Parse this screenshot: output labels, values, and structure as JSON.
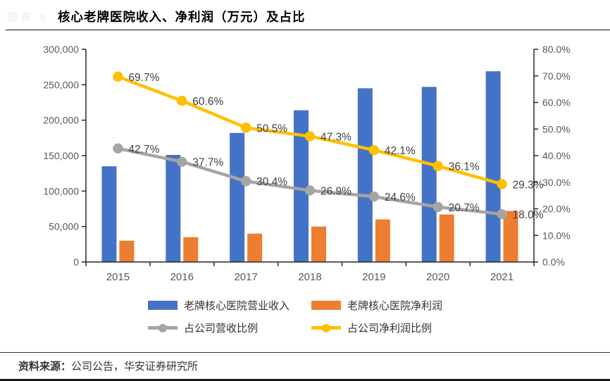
{
  "header": {
    "watermark": "图表 8",
    "title": "核心老牌医院收入、净利润（万元）及占比"
  },
  "chart_data": {
    "type": "bar",
    "subtype": "combo-bar-line",
    "title": "核心老牌医院收入、净利润（万元）及占比",
    "categories": [
      "2015",
      "2016",
      "2017",
      "2018",
      "2019",
      "2020",
      "2021"
    ],
    "series": [
      {
        "name": "老牌核心医院营业收入",
        "type": "bar",
        "axis": "left",
        "color": "#4472C4",
        "values": [
          135000,
          151000,
          182000,
          214000,
          245000,
          247000,
          269000
        ]
      },
      {
        "name": "老牌核心医院净利润",
        "type": "bar",
        "axis": "left",
        "color": "#ED7D31",
        "values": [
          30000,
          35000,
          40000,
          50000,
          60000,
          67000,
          72000
        ]
      },
      {
        "name": "占公司营收比例",
        "type": "line",
        "axis": "right",
        "color": "#A5A5A5",
        "values": [
          42.7,
          37.7,
          30.4,
          26.9,
          24.6,
          20.7,
          18.0
        ],
        "labels": [
          "42.7%",
          "37.7%",
          "30.4%",
          "26.9%",
          "24.6%",
          "20.7%",
          "18.0%"
        ]
      },
      {
        "name": "占公司净利润比例",
        "type": "line",
        "axis": "right",
        "color": "#FFC000",
        "values": [
          69.7,
          60.6,
          50.5,
          47.3,
          42.1,
          36.1,
          29.3
        ],
        "labels": [
          "69.7%",
          "60.6%",
          "50.5%",
          "47.3%",
          "42.1%",
          "36.1%",
          "29.3%"
        ]
      }
    ],
    "left_axis": {
      "min": 0,
      "max": 300000,
      "step": 50000,
      "tick_labels": [
        "0",
        "50,000",
        "100,000",
        "150,000",
        "200,000",
        "250,000",
        "300,000"
      ]
    },
    "right_axis": {
      "min": 0,
      "max": 80,
      "step": 10,
      "tick_labels": [
        "0.0%",
        "10.0%",
        "20.0%",
        "30.0%",
        "40.0%",
        "50.0%",
        "60.0%",
        "70.0%",
        "80.0%"
      ]
    },
    "grid": false,
    "legend_position": "bottom"
  },
  "footer": {
    "source_label": "资料来源：",
    "source_text": "公司公告，华安证券研究所"
  }
}
